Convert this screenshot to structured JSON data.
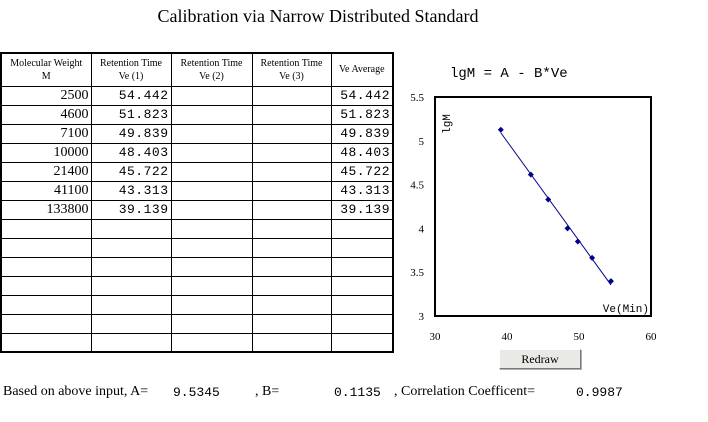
{
  "title": "Calibration via Narrow Distributed Standard",
  "table": {
    "headers": [
      {
        "line1": "Molecular Weight",
        "line2": "M"
      },
      {
        "line1": "Retention Time",
        "line2": "Ve (1)"
      },
      {
        "line1": "Retention Time",
        "line2": "Ve (2)"
      },
      {
        "line1": "Retention Time",
        "line2": "Ve (3)"
      },
      {
        "line1": "Ve Average",
        "line2": ""
      }
    ],
    "rows": [
      [
        "2500",
        "54.442",
        "",
        "",
        "54.442"
      ],
      [
        "4600",
        "51.823",
        "",
        "",
        "51.823"
      ],
      [
        "7100",
        "49.839",
        "",
        "",
        "49.839"
      ],
      [
        "10000",
        "48.403",
        "",
        "",
        "48.403"
      ],
      [
        "21400",
        "45.722",
        "",
        "",
        "45.722"
      ],
      [
        "41100",
        "43.313",
        "",
        "",
        "43.313"
      ],
      [
        "133800",
        "39.139",
        "",
        "",
        "39.139"
      ],
      [
        "",
        "",
        "",
        "",
        ""
      ],
      [
        "",
        "",
        "",
        "",
        ""
      ],
      [
        "",
        "",
        "",
        "",
        ""
      ],
      [
        "",
        "",
        "",
        "",
        ""
      ],
      [
        "",
        "",
        "",
        "",
        ""
      ],
      [
        "",
        "",
        "",
        "",
        ""
      ],
      [
        "",
        "",
        "",
        "",
        ""
      ]
    ]
  },
  "equation": "lgM = A - B*Ve",
  "chart_data": {
    "type": "scatter",
    "title": "",
    "xlabel": "Ve(Min)",
    "ylabel": "lgM",
    "xlim": [
      30,
      60
    ],
    "ylim": [
      3,
      5.5
    ],
    "xticks": [
      "30",
      "40",
      "50",
      "60"
    ],
    "yticks": [
      "3",
      "3.5",
      "4",
      "4.5",
      "5",
      "5.5"
    ],
    "grid": false,
    "color": "#00008b",
    "points": {
      "x": [
        54.442,
        51.823,
        49.839,
        48.403,
        45.722,
        43.313,
        39.139
      ],
      "y": [
        3.398,
        3.663,
        3.851,
        4.0,
        4.33,
        4.614,
        5.126
      ]
    },
    "fit_line": {
      "x": [
        39.139,
        54.442
      ],
      "y": [
        5.092,
        3.355
      ]
    }
  },
  "redraw_label": "Redraw",
  "results": {
    "prefix": "Based on above input, A=",
    "a_value": "9.5345",
    "b_label": ", B=",
    "b_value": "0.1135",
    "corr_label": ", Correlation Coefficent=",
    "corr_value": "0.9987"
  }
}
